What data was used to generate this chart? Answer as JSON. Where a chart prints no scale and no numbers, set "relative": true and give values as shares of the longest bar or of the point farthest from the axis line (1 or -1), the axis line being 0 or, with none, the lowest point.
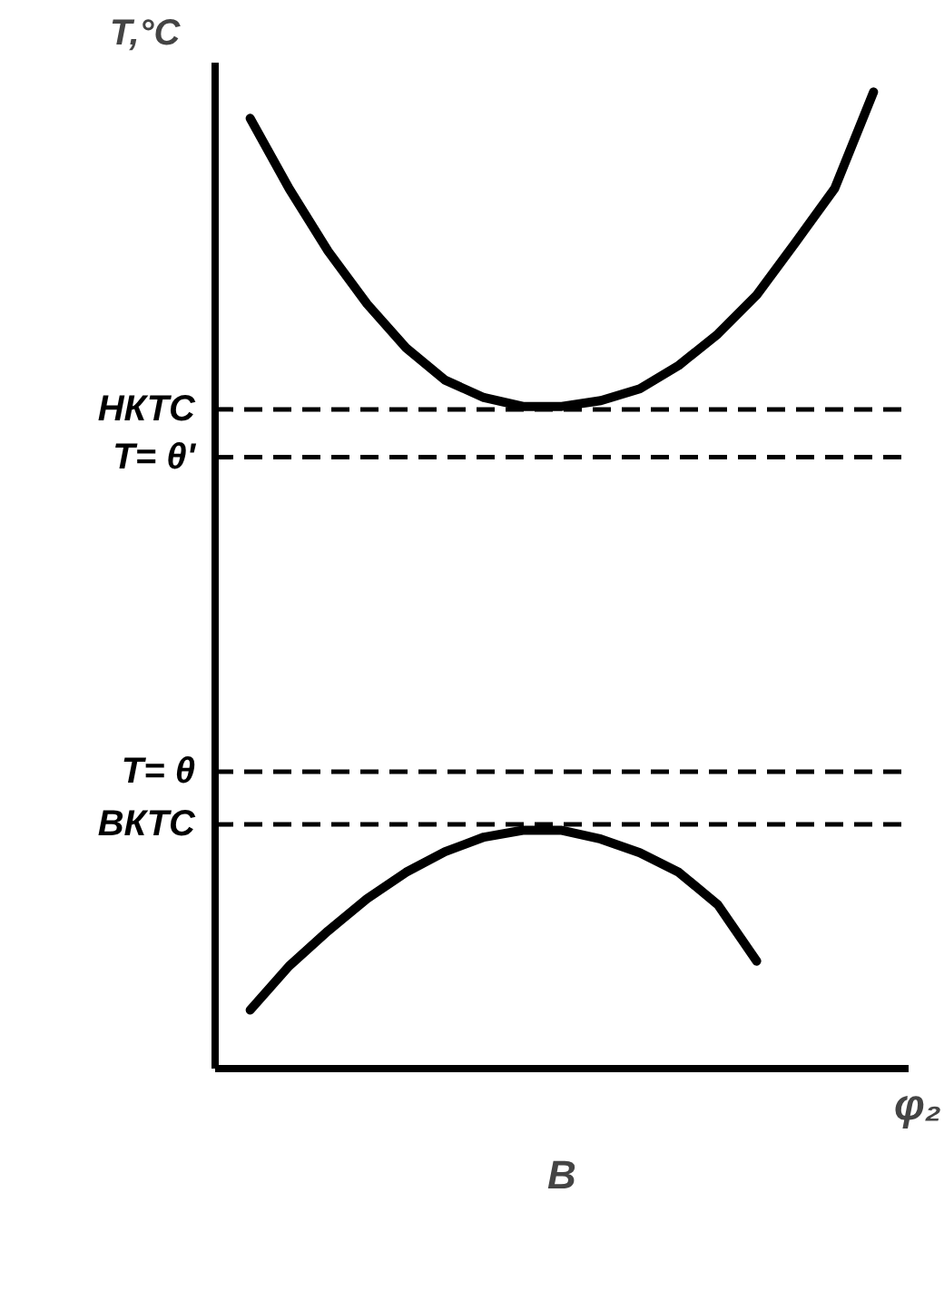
{
  "chart_data": {
    "type": "line",
    "relative": true,
    "ylabel": "T,°C",
    "xlabel": "φ₂",
    "categories": [
      null,
      null,
      null,
      null,
      null,
      null,
      null,
      null,
      null,
      null,
      null,
      null,
      null,
      null,
      null,
      null,
      null
    ],
    "series": [
      {
        "color": "#000000",
        "values": [
          0.973,
          0.901,
          0.837,
          0.783,
          0.738,
          0.705,
          0.687,
          0.678,
          0.678,
          0.684,
          0.696,
          0.72,
          0.752,
          0.792,
          0.846,
          0.901,
          1.0
        ]
      },
      {
        "color": "#000000",
        "values": [
          0.06,
          0.105,
          0.141,
          0.174,
          0.201,
          0.222,
          0.237,
          0.244,
          0.244,
          0.235,
          0.221,
          0.201,
          0.168,
          0.11,
          null,
          null,
          null
        ]
      }
    ],
    "ref_lines": [
      {
        "axis": "y",
        "value": 0.675,
        "label": "НКТС",
        "color": "#000000",
        "line_style": "dashed"
      },
      {
        "axis": "y",
        "value": 0.626,
        "label": "T= θ'",
        "color": "#000000",
        "line_style": "dashed"
      },
      {
        "axis": "y",
        "value": 0.304,
        "label": "T= θ",
        "color": "#000000",
        "line_style": "dashed"
      },
      {
        "axis": "y",
        "value": 0.25,
        "label": "ВКТС",
        "color": "#000000",
        "line_style": "dashed"
      }
    ],
    "annotations": [
      "В"
    ],
    "grid": false,
    "marker": "none",
    "line_style": "solid"
  }
}
